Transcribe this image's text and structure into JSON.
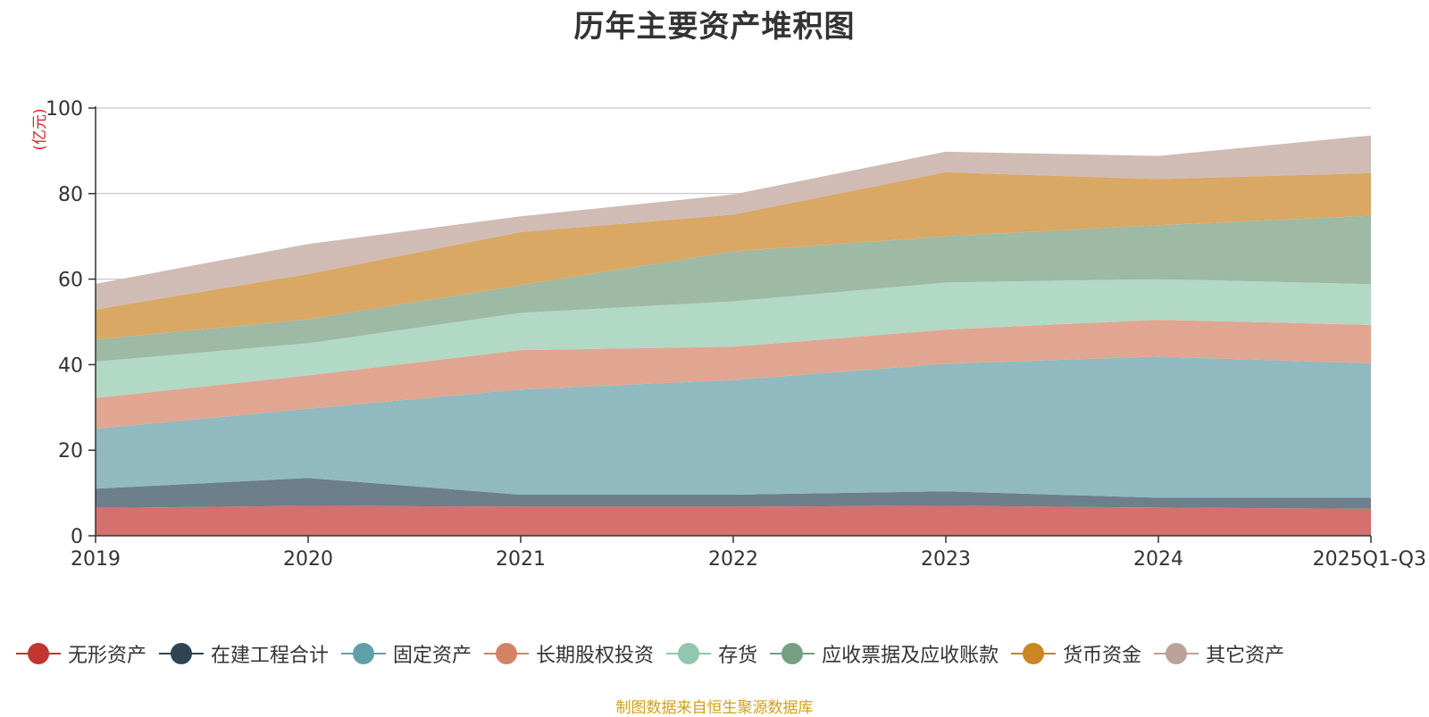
{
  "chart_data": {
    "type": "area",
    "stacked": true,
    "title": "历年主要资产堆积图",
    "unit_label": "(亿元)",
    "categories": [
      "2019",
      "2020",
      "2021",
      "2022",
      "2023",
      "2024",
      "2025Q1-Q3"
    ],
    "ylim": [
      0,
      100
    ],
    "yticks": [
      0,
      20,
      40,
      60,
      80,
      100
    ],
    "grid": true,
    "legend_position": "bottom",
    "series": [
      {
        "name": "无形资产",
        "color": "#c23531",
        "fill": "#d4706d",
        "values": [
          6.5,
          7.0,
          6.8,
          6.8,
          7.0,
          6.6,
          6.3
        ]
      },
      {
        "name": "在建工程合计",
        "color": "#2f4554",
        "fill": "#6d7f8a",
        "values": [
          4.5,
          6.5,
          2.8,
          2.8,
          3.4,
          2.3,
          2.6
        ]
      },
      {
        "name": "固定资产",
        "color": "#61a0a8",
        "fill": "#90bac0",
        "values": [
          14.0,
          16.2,
          24.6,
          26.8,
          29.8,
          33.0,
          31.4
        ]
      },
      {
        "name": "长期股权投资",
        "color": "#d48265",
        "fill": "#e0a691",
        "values": [
          7.2,
          7.8,
          9.2,
          7.8,
          8.0,
          8.6,
          9.0
        ]
      },
      {
        "name": "存货",
        "color": "#91c7ae",
        "fill": "#b2d8c6",
        "values": [
          8.5,
          7.5,
          8.7,
          10.6,
          11.0,
          9.5,
          9.5
        ]
      },
      {
        "name": "应收票据及应收账款",
        "color": "#749f83",
        "fill": "#9eb9a4",
        "values": [
          5.2,
          5.6,
          6.5,
          11.7,
          10.8,
          12.6,
          16.0
        ]
      },
      {
        "name": "货币资金",
        "color": "#ca8622",
        "fill": "#d9a864",
        "values": [
          7.0,
          10.6,
          12.4,
          8.6,
          15.0,
          10.8,
          10.0
        ]
      },
      {
        "name": "其它资产",
        "color": "#bda29a",
        "fill": "#d0bbb5",
        "values": [
          6.0,
          7.0,
          3.7,
          4.7,
          4.8,
          5.4,
          8.8
        ]
      }
    ]
  },
  "source_note": "制图数据来自恒生聚源数据库"
}
